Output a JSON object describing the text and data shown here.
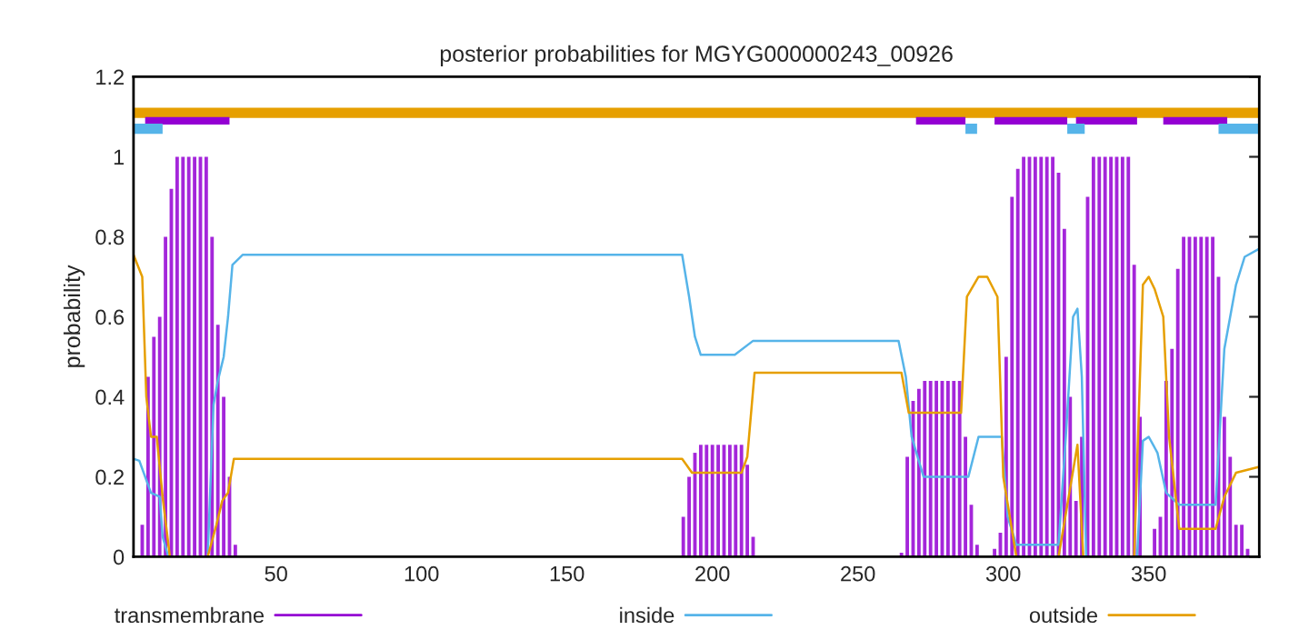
{
  "chart_data": {
    "type": "line",
    "title": "posterior probabilities for MGYG000000243_00926",
    "ylabel": "probability",
    "xlim": [
      1,
      388
    ],
    "xticks": [
      50,
      100,
      150,
      200,
      250,
      300,
      350
    ],
    "ylim": [
      0,
      1.2
    ],
    "yticks": [
      0,
      0.2,
      0.4,
      0.6,
      0.8,
      1,
      1.2
    ],
    "legend": "bottom",
    "grid": false,
    "series": [
      {
        "name": "transmembrane",
        "type": "bar",
        "color": "#9400d3",
        "x": [
          4,
          6,
          8,
          10,
          12,
          14,
          16,
          18,
          20,
          22,
          24,
          26,
          28,
          30,
          32,
          34,
          36,
          190,
          192,
          194,
          196,
          198,
          200,
          202,
          204,
          206,
          208,
          210,
          212,
          214,
          265,
          267,
          269,
          271,
          273,
          275,
          277,
          279,
          281,
          283,
          285,
          287,
          289,
          291,
          297,
          299,
          301,
          303,
          305,
          307,
          309,
          311,
          313,
          315,
          317,
          319,
          321,
          323,
          325,
          327,
          329,
          331,
          333,
          335,
          337,
          339,
          341,
          343,
          345,
          347,
          352,
          354,
          356,
          358,
          360,
          362,
          364,
          366,
          368,
          370,
          372,
          374,
          376,
          378,
          380,
          382,
          384
        ],
        "values": [
          0.08,
          0.45,
          0.55,
          0.6,
          0.8,
          0.92,
          1,
          1,
          1,
          1,
          1,
          1,
          0.8,
          0.58,
          0.4,
          0.2,
          0.03,
          0.1,
          0.2,
          0.26,
          0.28,
          0.28,
          0.28,
          0.28,
          0.28,
          0.28,
          0.28,
          0.28,
          0.23,
          0.05,
          0.01,
          0.25,
          0.39,
          0.42,
          0.44,
          0.44,
          0.44,
          0.44,
          0.44,
          0.44,
          0.44,
          0.3,
          0.13,
          0.03,
          0.02,
          0.06,
          0.5,
          0.9,
          0.97,
          1,
          1,
          1,
          1,
          1,
          1,
          0.96,
          0.82,
          0.4,
          0.14,
          0.3,
          0.9,
          1,
          1,
          1,
          1,
          1,
          1,
          1,
          0.73,
          0.35,
          0.07,
          0.1,
          0.44,
          0.52,
          0.72,
          0.8,
          0.8,
          0.8,
          0.8,
          0.8,
          0.8,
          0.7,
          0.35,
          0.25,
          0.08,
          0.08,
          0.02
        ]
      },
      {
        "name": "inside",
        "color": "#56b4e9",
        "x": [
          1,
          3,
          7,
          10,
          11,
          13,
          26.5,
          28.5,
          30,
          32,
          33.5,
          35,
          38.5,
          189.6,
          192,
          194,
          196,
          207.7,
          214,
          264,
          266.5,
          268.5,
          272.6,
          288,
          291.5,
          299.5,
          301.5,
          304.5,
          319,
          321.5,
          324,
          325.5,
          327,
          328.5,
          346,
          348,
          350,
          353,
          356,
          360.5,
          373,
          376,
          380,
          383,
          388
        ],
        "values": [
          0.245,
          0.24,
          0.16,
          0.15,
          0.05,
          0,
          0,
          0.38,
          0.44,
          0.5,
          0.6,
          0.73,
          0.755,
          0.755,
          0.65,
          0.55,
          0.505,
          0.505,
          0.54,
          0.54,
          0.45,
          0.3,
          0.2,
          0.2,
          0.3,
          0.3,
          0.1,
          0.03,
          0.03,
          0.3,
          0.6,
          0.62,
          0.45,
          0,
          0,
          0.29,
          0.3,
          0.26,
          0.16,
          0.13,
          0.13,
          0.52,
          0.68,
          0.75,
          0.77
        ]
      },
      {
        "name": "outside",
        "color": "#e69f00",
        "x": [
          1,
          4,
          5.4,
          7,
          9,
          11,
          13.5,
          26.5,
          29.5,
          31.5,
          33.5,
          35.5,
          189.6,
          193,
          210,
          212,
          214.5,
          265,
          267.5,
          285.5,
          287.5,
          291.5,
          294.5,
          298,
          300,
          304.5,
          319,
          325.5,
          327.5,
          345,
          348,
          350,
          352,
          355,
          357,
          360.5,
          373,
          376,
          380,
          388
        ],
        "values": [
          0.755,
          0.7,
          0.4,
          0.3,
          0.3,
          0.15,
          0,
          0,
          0.08,
          0.14,
          0.16,
          0.245,
          0.245,
          0.21,
          0.21,
          0.25,
          0.46,
          0.46,
          0.36,
          0.36,
          0.65,
          0.7,
          0.7,
          0.65,
          0.2,
          0,
          0,
          0.28,
          0,
          0,
          0.68,
          0.7,
          0.67,
          0.6,
          0.3,
          0.07,
          0.07,
          0.15,
          0.21,
          0.225
        ]
      },
      {
        "type": "line",
        "color": "#e69f00",
        "x": [
          1,
          388
        ],
        "values": [
          1.11,
          1.11
        ]
      },
      {
        "type": "line",
        "color": "#9400d3",
        "x": [
          5,
          34,
          null,
          270,
          287,
          null,
          297,
          322,
          null,
          325,
          346,
          null,
          355,
          377
        ],
        "values": [
          1.09,
          1.09,
          null,
          1.09,
          1.09,
          null,
          1.09,
          1.09,
          null,
          1.09,
          1.09,
          null,
          1.09,
          1.09
        ]
      },
      {
        "type": "line",
        "color": "#56b4e9",
        "x": [
          1,
          11,
          null,
          287,
          291,
          null,
          322,
          328,
          null,
          374,
          388
        ],
        "values": [
          1.07,
          1.07,
          null,
          1.07,
          1.07,
          null,
          1.07,
          1.07,
          null,
          1.07,
          1.07
        ]
      }
    ]
  }
}
